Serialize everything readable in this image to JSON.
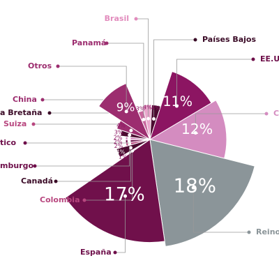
{
  "chart_data": {
    "type": "rose",
    "categories": [
      "Brasil",
      "Países Bajos",
      "EE.U",
      "C",
      "Reino",
      "España",
      "Colombia",
      "Canadá",
      "mburgo",
      "tico",
      "Suiza",
      "a Bretaña",
      "China",
      "Otros",
      "Panamá"
    ],
    "values": [
      4,
      4,
      11,
      12,
      18,
      17,
      1,
      4,
      2,
      2,
      2,
      3,
      4,
      9,
      3
    ],
    "value_labels": [
      "4%",
      "4%",
      "11%",
      "12%",
      "18%",
      "17%",
      "1%",
      "4%",
      "2%",
      "2%",
      "2%",
      "3%",
      "4%",
      "9%",
      "3%"
    ],
    "colors": [
      "#e9a6cc",
      "#4b0b30",
      "#8c1562",
      "#d48cc0",
      "#8b9599",
      "#70104b",
      "#e9a6cc",
      "#4b0b30",
      "#b8477f",
      "#70104b",
      "#d48cc0",
      "#4b0b30",
      "#9c2d6f",
      "#9c2d6f",
      "#c9689f"
    ],
    "label_colors": [
      "#e28cbd",
      "#3a0a26",
      "#6e0f4a",
      "#d48cc0",
      "#8b9599",
      "#6e0f4a",
      "#b8477f",
      "#3a0a26",
      "#6e0f4a",
      "#6e0f4a",
      "#b8477f",
      "#3a0a26",
      "#9c2d6f",
      "#9c2d6f",
      "#9c2d6f"
    ]
  }
}
